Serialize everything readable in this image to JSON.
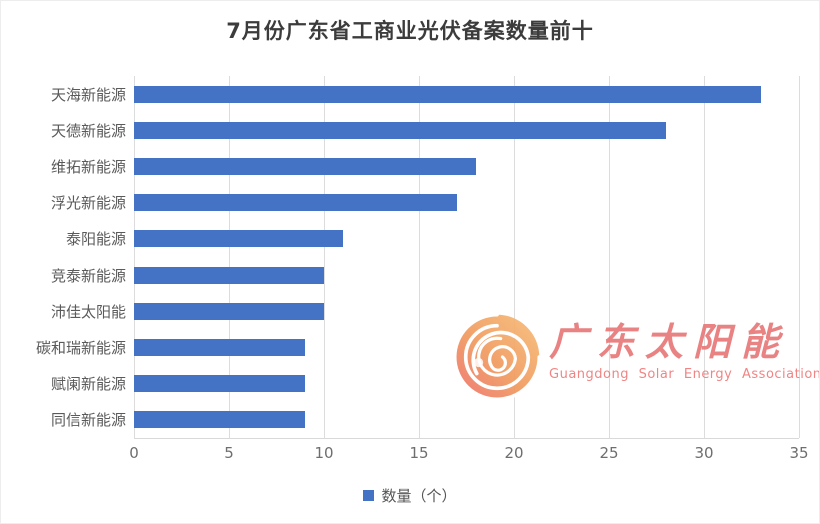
{
  "title": "7月份广东省工商业光伏备案数量前十",
  "chart_data": {
    "type": "bar",
    "orientation": "horizontal",
    "title": "7月份广东省工商业光伏备案数量前十",
    "categories": [
      "天海新能源",
      "天德新能源",
      "维拓新能源",
      "浮光新能源",
      "泰阳能源",
      "竞泰新能源",
      "沛佳太阳能",
      "碳和瑞新能源",
      "赋阑新能源",
      "同信新能源"
    ],
    "values": [
      33,
      28,
      18,
      17,
      11,
      10,
      10,
      9,
      9,
      9
    ],
    "series_name": "数量（个）",
    "xlabel": "",
    "ylabel": "",
    "xlim": [
      0,
      35
    ],
    "xticks": [
      0,
      5,
      10,
      15,
      20,
      25,
      30,
      35
    ],
    "grid": true,
    "legend_position": "bottom",
    "bar_color": "#4472C4",
    "gridline_color": "#DCDCDC"
  },
  "legend": {
    "label": "数量（个）",
    "swatch_color": "#4472C4"
  },
  "watermark": {
    "cn_text": "广东太阳能",
    "en_text": "Guangdong Solar Energy Association",
    "text_color": "#E87878",
    "logo": "sun-spiral-icon"
  }
}
